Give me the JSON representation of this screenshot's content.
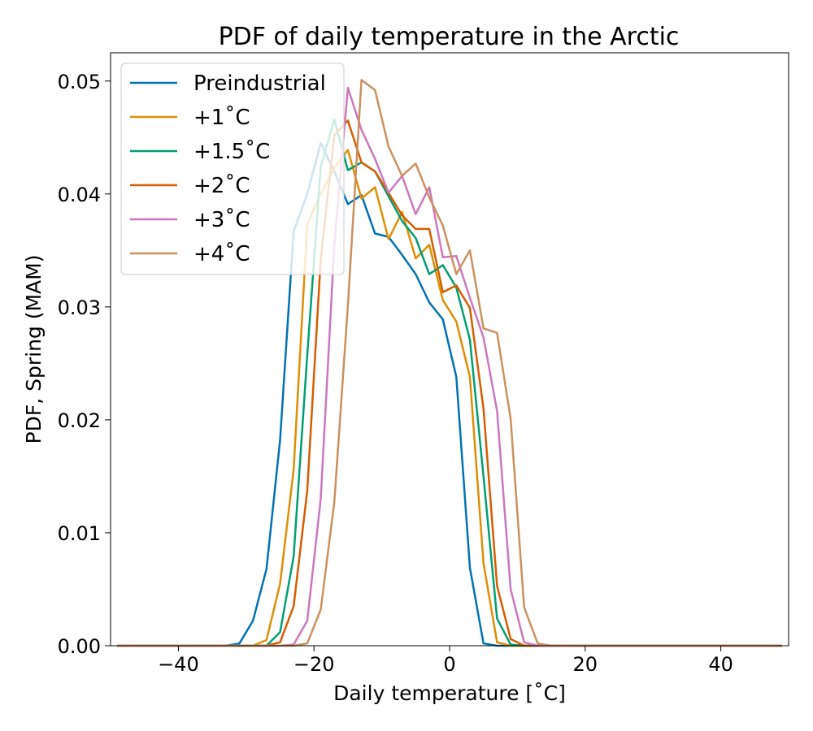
{
  "chart_data": {
    "type": "line",
    "title": "PDF of daily temperature in the Arctic",
    "xlabel": "Daily temperature [˚C]",
    "ylabel": "PDF, Spring (MAM)",
    "xlim": [
      -50,
      50
    ],
    "ylim": [
      0,
      0.0525
    ],
    "xticks": [
      -40,
      -20,
      0,
      20,
      40
    ],
    "xtick_labels": [
      "−40",
      "−20",
      "0",
      "20",
      "40"
    ],
    "yticks": [
      0,
      0.01,
      0.02,
      0.03,
      0.04,
      0.05
    ],
    "ytick_labels": [
      "0.00",
      "0.01",
      "0.02",
      "0.03",
      "0.04",
      "0.05"
    ],
    "grid": false,
    "legend_position": "top-left",
    "x": [
      -49,
      -47,
      -45,
      -43,
      -41,
      -39,
      -37,
      -35,
      -33,
      -31,
      -29,
      -27,
      -25,
      -23,
      -21,
      -19,
      -17,
      -15,
      -13,
      -11,
      -9,
      -7,
      -5,
      -3,
      -1,
      1,
      3,
      5,
      7,
      9,
      11,
      13,
      15,
      17,
      19,
      21,
      23,
      25,
      27,
      29,
      31,
      33,
      35,
      37,
      39,
      41,
      43,
      45,
      47,
      49
    ],
    "series": [
      {
        "name": "Preindustrial",
        "color": "#0173b2",
        "values": [
          0,
          0,
          0,
          0,
          0,
          0,
          0,
          0,
          0,
          0.0002,
          0.0022,
          0.0068,
          0.0182,
          0.0367,
          0.04,
          0.0445,
          0.042,
          0.0391,
          0.0399,
          0.0365,
          0.0362,
          0.0346,
          0.0329,
          0.0304,
          0.0289,
          0.0238,
          0.0069,
          0.0002,
          0,
          0,
          0,
          0,
          0,
          0,
          0,
          0,
          0,
          0,
          0,
          0,
          0,
          0,
          0,
          0,
          0,
          0,
          0,
          0,
          0,
          0
        ]
      },
      {
        "name": "+1˚C",
        "color": "#de8f05",
        "values": [
          0,
          0,
          0,
          0,
          0,
          0,
          0,
          0,
          0,
          0,
          0,
          0.0005,
          0.0055,
          0.0156,
          0.0373,
          0.04,
          0.0423,
          0.0439,
          0.0396,
          0.0406,
          0.036,
          0.0384,
          0.0343,
          0.0355,
          0.0306,
          0.0287,
          0.0238,
          0.0073,
          0.0003,
          0,
          0,
          0,
          0,
          0,
          0,
          0,
          0,
          0,
          0,
          0,
          0,
          0,
          0,
          0,
          0,
          0,
          0,
          0,
          0,
          0
        ]
      },
      {
        "name": "+1.5˚C",
        "color": "#029e73",
        "values": [
          0,
          0,
          0,
          0,
          0,
          0,
          0,
          0,
          0,
          0,
          0,
          0,
          0.0012,
          0.0079,
          0.0257,
          0.0424,
          0.0466,
          0.0421,
          0.0428,
          0.042,
          0.0398,
          0.0376,
          0.0361,
          0.0329,
          0.0337,
          0.0317,
          0.0271,
          0.015,
          0.0024,
          0.0001,
          0,
          0,
          0,
          0,
          0,
          0,
          0,
          0,
          0,
          0,
          0,
          0,
          0,
          0,
          0,
          0,
          0,
          0,
          0,
          0
        ]
      },
      {
        "name": "+2˚C",
        "color": "#d55e00",
        "values": [
          0,
          0,
          0,
          0,
          0,
          0,
          0,
          0,
          0,
          0,
          0,
          0,
          0.0003,
          0.0035,
          0.0137,
          0.0342,
          0.0452,
          0.0465,
          0.0428,
          0.042,
          0.0401,
          0.0381,
          0.0369,
          0.0369,
          0.0313,
          0.0319,
          0.0299,
          0.021,
          0.0053,
          0.0006,
          0,
          0,
          0,
          0,
          0,
          0,
          0,
          0,
          0,
          0,
          0,
          0,
          0,
          0,
          0,
          0,
          0,
          0,
          0,
          0
        ]
      },
      {
        "name": "+3˚C",
        "color": "#cc78bc",
        "values": [
          0,
          0,
          0,
          0,
          0,
          0,
          0,
          0,
          0,
          0,
          0,
          0,
          0,
          0.0001,
          0.0022,
          0.013,
          0.0354,
          0.0494,
          0.0457,
          0.0431,
          0.0401,
          0.0416,
          0.0382,
          0.0406,
          0.0344,
          0.0345,
          0.0308,
          0.0273,
          0.0208,
          0.005,
          0.0003,
          0,
          0,
          0,
          0,
          0,
          0,
          0,
          0,
          0,
          0,
          0,
          0,
          0,
          0,
          0,
          0,
          0,
          0,
          0
        ]
      },
      {
        "name": "+4˚C",
        "color": "#ca9161",
        "values": [
          0,
          0,
          0,
          0,
          0,
          0,
          0,
          0,
          0,
          0,
          0,
          0,
          0,
          0,
          0.0002,
          0.0032,
          0.0127,
          0.0301,
          0.0501,
          0.0492,
          0.0442,
          0.0416,
          0.0427,
          0.0397,
          0.0372,
          0.0329,
          0.035,
          0.0281,
          0.0277,
          0.0201,
          0.0034,
          0.0002,
          0,
          0,
          0,
          0,
          0,
          0,
          0,
          0,
          0,
          0,
          0,
          0,
          0,
          0,
          0,
          0,
          0,
          0
        ]
      }
    ]
  }
}
